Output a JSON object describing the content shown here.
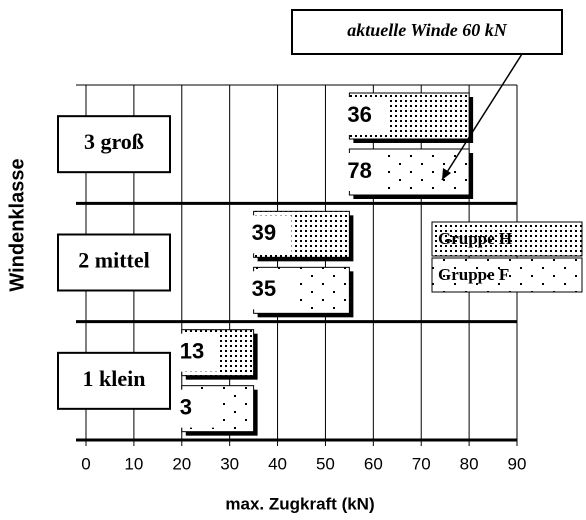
{
  "chart_data": {
    "type": "bar",
    "xlabel": "max. Zugkraft (kN)",
    "ylabel": "Windenklasse",
    "annotation": "aktuelle Winde 60 kN",
    "categories": [
      "1 klein",
      "2 mittel",
      "3 groß"
    ],
    "series": [
      {
        "name": "Gruppe F",
        "values": [
          3,
          35,
          78
        ],
        "ranges": [
          [
            20,
            35
          ],
          [
            35,
            55
          ],
          [
            55,
            80
          ]
        ]
      },
      {
        "name": "Gruppe H",
        "values": [
          13,
          39,
          36
        ],
        "ranges": [
          [
            20,
            35
          ],
          [
            35,
            55
          ],
          [
            55,
            80
          ]
        ]
      }
    ],
    "xlim": [
      0,
      90
    ],
    "xticks": [
      0,
      10,
      20,
      30,
      40,
      50,
      60,
      70,
      80,
      90
    ],
    "grid": true
  }
}
